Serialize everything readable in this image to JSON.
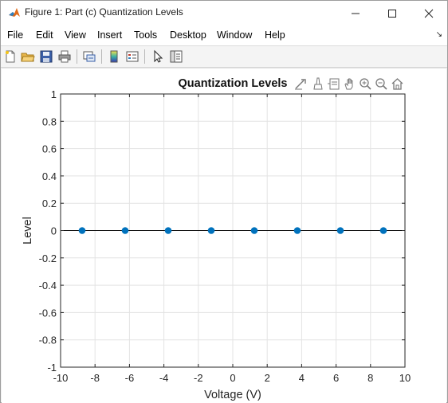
{
  "window": {
    "title": "Figure 1: Part (c) Quantization Levels",
    "minimize_icon": "minimize-icon",
    "maximize_icon": "maximize-icon",
    "close_icon": "close-icon"
  },
  "menubar": {
    "items": [
      "File",
      "Edit",
      "View",
      "Insert",
      "Tools",
      "Desktop",
      "Window",
      "Help"
    ]
  },
  "toolbar": {
    "icons": [
      "new-figure-icon",
      "open-file-icon",
      "save-icon",
      "print-icon",
      "link-plot-icon",
      "insert-colorbar-icon",
      "insert-legend-icon",
      "edit-plot-icon",
      "property-inspector-icon"
    ]
  },
  "axes_toolbar": {
    "icons": [
      "export-icon",
      "brush-icon",
      "data-tips-icon",
      "pan-icon",
      "zoom-in-icon",
      "zoom-out-icon",
      "home-icon"
    ]
  },
  "colors": {
    "marker": "#0072bd",
    "grid": "#e3e3e3",
    "axis": "#262626"
  },
  "chart_data": {
    "type": "scatter",
    "title": "Quantization Levels",
    "xlabel": "Voltage (V)",
    "ylabel": "Level",
    "xlim": [
      -10,
      10
    ],
    "ylim": [
      -1,
      1
    ],
    "xticks": [
      "-10",
      "-8",
      "-6",
      "-4",
      "-2",
      "0",
      "2",
      "4",
      "6",
      "8",
      "10"
    ],
    "yticks": [
      "1",
      "0.8",
      "0.6",
      "0.4",
      "0.2",
      "0",
      "-0.2",
      "-0.4",
      "-0.6",
      "-0.8",
      "-1"
    ],
    "grid": true,
    "reference_line_y": 0,
    "series": [
      {
        "x": [
          -8.75,
          -6.25,
          -3.75,
          -1.25,
          1.25,
          3.75,
          6.25,
          8.75
        ],
        "y": [
          0,
          0,
          0,
          0,
          0,
          0,
          0,
          0
        ]
      }
    ]
  }
}
